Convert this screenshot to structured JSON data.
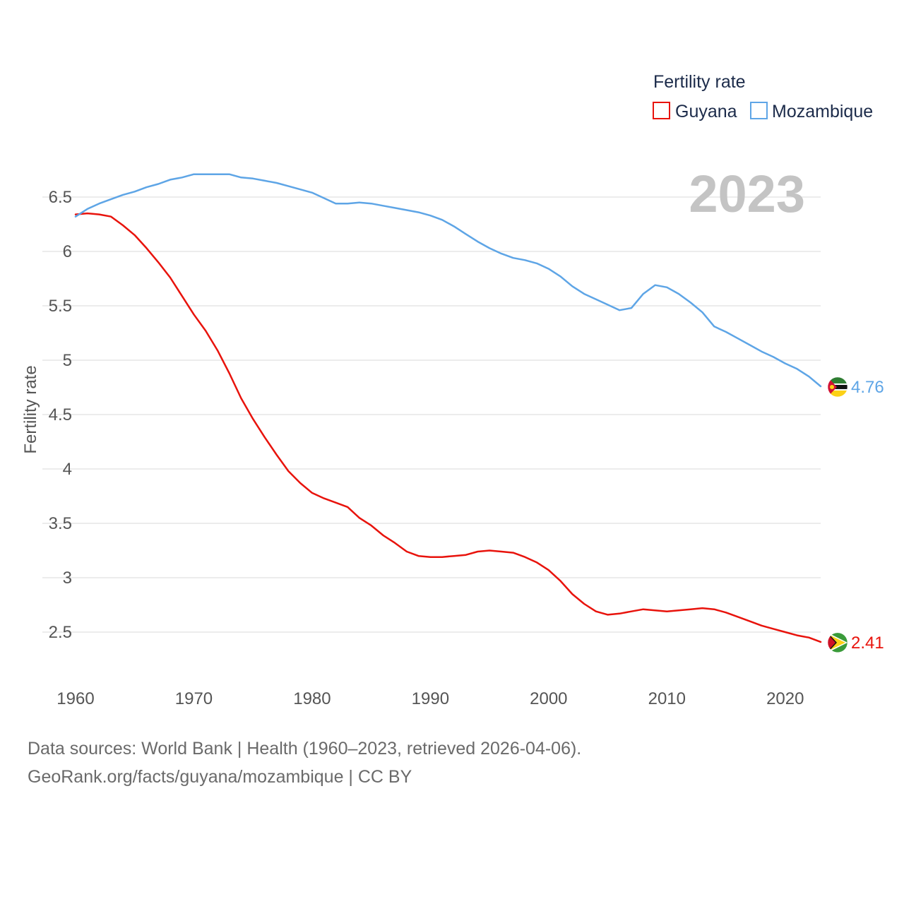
{
  "chart_data": {
    "type": "line",
    "title": "",
    "legend_title": "Fertility rate",
    "ylabel": "Fertility rate",
    "xlabel": "",
    "ylim": [
      2.1,
      6.75
    ],
    "xlim": [
      1960,
      2023
    ],
    "yticks": [
      "2.5",
      "3",
      "3.5",
      "4",
      "4.5",
      "5",
      "5.5",
      "6",
      "6.5"
    ],
    "xticks": [
      "1960",
      "1970",
      "1980",
      "1990",
      "2000",
      "2010",
      "2020"
    ],
    "year_label": "2023",
    "grid": true,
    "legend_position": "top-right",
    "x": [
      1960,
      1961,
      1962,
      1963,
      1964,
      1965,
      1966,
      1967,
      1968,
      1969,
      1970,
      1971,
      1972,
      1973,
      1974,
      1975,
      1976,
      1977,
      1978,
      1979,
      1980,
      1981,
      1982,
      1983,
      1984,
      1985,
      1986,
      1987,
      1988,
      1989,
      1990,
      1991,
      1992,
      1993,
      1994,
      1995,
      1996,
      1997,
      1998,
      1999,
      2000,
      2001,
      2002,
      2003,
      2004,
      2005,
      2006,
      2007,
      2008,
      2009,
      2010,
      2011,
      2012,
      2013,
      2014,
      2015,
      2016,
      2017,
      2018,
      2019,
      2020,
      2021,
      2022,
      2023
    ],
    "series": [
      {
        "name": "Guyana",
        "color": "#e8130c",
        "end_label": "2.41",
        "flag": "guyana-flag-icon",
        "values": [
          6.34,
          6.35,
          6.34,
          6.32,
          6.24,
          6.15,
          6.03,
          5.9,
          5.76,
          5.59,
          5.42,
          5.27,
          5.09,
          4.88,
          4.65,
          4.46,
          4.29,
          4.13,
          3.98,
          3.87,
          3.78,
          3.73,
          3.69,
          3.65,
          3.55,
          3.48,
          3.39,
          3.32,
          3.24,
          3.2,
          3.19,
          3.19,
          3.2,
          3.21,
          3.24,
          3.25,
          3.24,
          3.23,
          3.19,
          3.14,
          3.07,
          2.97,
          2.85,
          2.76,
          2.69,
          2.66,
          2.67,
          2.69,
          2.71,
          2.7,
          2.69,
          2.7,
          2.71,
          2.72,
          2.71,
          2.68,
          2.64,
          2.6,
          2.56,
          2.53,
          2.5,
          2.47,
          2.45,
          2.41
        ]
      },
      {
        "name": "Mozambique",
        "color": "#5ea5e6",
        "end_label": "4.76",
        "flag": "mozambique-flag-icon",
        "values": [
          6.32,
          6.39,
          6.44,
          6.48,
          6.52,
          6.55,
          6.59,
          6.62,
          6.66,
          6.68,
          6.71,
          6.71,
          6.71,
          6.71,
          6.68,
          6.67,
          6.65,
          6.63,
          6.6,
          6.57,
          6.54,
          6.49,
          6.44,
          6.44,
          6.45,
          6.44,
          6.42,
          6.4,
          6.38,
          6.36,
          6.33,
          6.29,
          6.23,
          6.16,
          6.09,
          6.03,
          5.98,
          5.94,
          5.92,
          5.89,
          5.84,
          5.77,
          5.68,
          5.61,
          5.56,
          5.51,
          5.46,
          5.48,
          5.61,
          5.69,
          5.67,
          5.61,
          5.53,
          5.44,
          5.31,
          5.26,
          5.2,
          5.14,
          5.08,
          5.03,
          4.97,
          4.92,
          4.85,
          4.76
        ]
      }
    ]
  },
  "footer": {
    "line1": "Data sources: World Bank | Health (1960–2023, retrieved 2026-04-06).",
    "line2": "GeoRank.org/facts/guyana/mozambique | CC BY"
  }
}
